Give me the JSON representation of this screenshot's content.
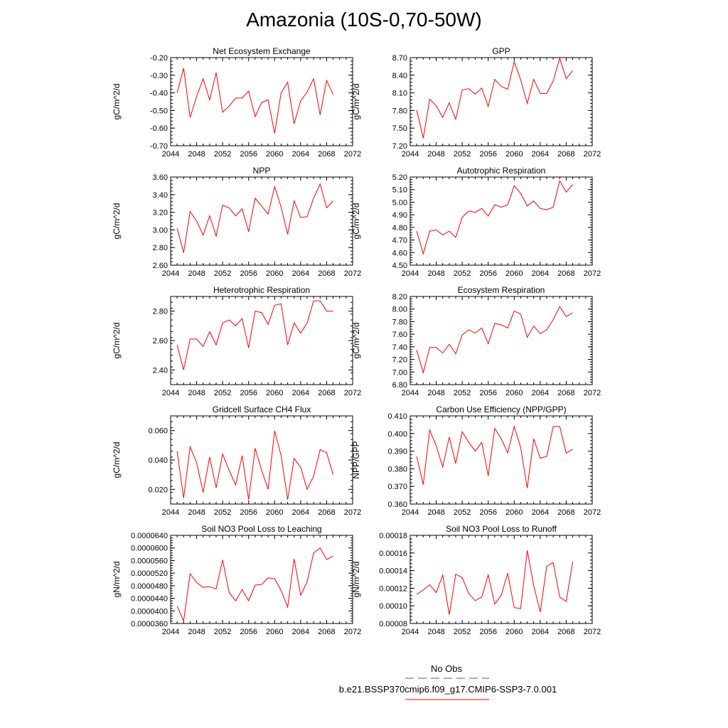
{
  "title": "Amazonia (10S-0,70-50W)",
  "legend": {
    "obs_label": "No Obs",
    "obs_color": "#4b4bff",
    "case_label": "b.e21.BSSP370cmip6.f09_g17.CMIP6-SSP3-7.0.001",
    "case_color": "#ff0000"
  },
  "chart_data": [
    {
      "type": "line",
      "title": "Net Ecosystem Exchange",
      "ylabel": "gC/m^2/d",
      "xlim": [
        2044,
        2072
      ],
      "xticks": [
        2044,
        2048,
        2052,
        2056,
        2060,
        2064,
        2068,
        2072
      ],
      "ylim": [
        -0.7,
        -0.2
      ],
      "yticks": [
        "-0.70",
        "-0.60",
        "-0.50",
        "-0.40",
        "-0.30",
        "-0.20"
      ],
      "x": [
        2045,
        2046,
        2047,
        2048,
        2049,
        2050,
        2051,
        2052,
        2053,
        2054,
        2055,
        2056,
        2057,
        2058,
        2059,
        2060,
        2061,
        2062,
        2063,
        2064,
        2065,
        2066,
        2067,
        2068,
        2069
      ],
      "y": [
        -0.4,
        -0.26,
        -0.54,
        -0.42,
        -0.32,
        -0.44,
        -0.285,
        -0.51,
        -0.475,
        -0.43,
        -0.43,
        -0.39,
        -0.535,
        -0.455,
        -0.44,
        -0.63,
        -0.4,
        -0.34,
        -0.575,
        -0.445,
        -0.395,
        -0.32,
        -0.525,
        -0.33,
        -0.41
      ]
    },
    {
      "type": "line",
      "title": "GPP",
      "ylabel": "gC/m^2/d",
      "xlim": [
        2044,
        2072
      ],
      "xticks": [
        2044,
        2048,
        2052,
        2056,
        2060,
        2064,
        2068,
        2072
      ],
      "ylim": [
        7.2,
        8.7
      ],
      "yticks": [
        "7.20",
        "7.50",
        "7.80",
        "8.10",
        "8.40",
        "8.70"
      ],
      "x": [
        2045,
        2046,
        2047,
        2048,
        2049,
        2050,
        2051,
        2052,
        2053,
        2054,
        2055,
        2056,
        2057,
        2058,
        2059,
        2060,
        2061,
        2062,
        2063,
        2064,
        2065,
        2066,
        2067,
        2068,
        2069
      ],
      "y": [
        7.81,
        7.33,
        7.99,
        7.88,
        7.68,
        7.93,
        7.65,
        8.15,
        8.17,
        8.08,
        8.18,
        7.87,
        8.33,
        8.21,
        8.16,
        8.63,
        8.32,
        7.92,
        8.33,
        8.09,
        8.09,
        8.3,
        8.69,
        8.34,
        8.48
      ]
    },
    {
      "type": "line",
      "title": "NPP",
      "ylabel": "gC/m^2/d",
      "xlim": [
        2044,
        2072
      ],
      "xticks": [
        2044,
        2048,
        2052,
        2056,
        2060,
        2064,
        2068,
        2072
      ],
      "ylim": [
        2.6,
        3.6
      ],
      "yticks": [
        "2.60",
        "2.80",
        "3.00",
        "3.20",
        "3.40",
        "3.60"
      ],
      "x": [
        2045,
        2046,
        2047,
        2048,
        2049,
        2050,
        2051,
        2052,
        2053,
        2054,
        2055,
        2056,
        2057,
        2058,
        2059,
        2060,
        2061,
        2062,
        2063,
        2064,
        2065,
        2066,
        2067,
        2068,
        2069
      ],
      "y": [
        3.02,
        2.74,
        3.21,
        3.1,
        2.94,
        3.16,
        2.93,
        3.28,
        3.25,
        3.16,
        3.24,
        2.98,
        3.36,
        3.27,
        3.18,
        3.49,
        3.26,
        2.95,
        3.33,
        3.14,
        3.15,
        3.36,
        3.52,
        3.25,
        3.33
      ]
    },
    {
      "type": "line",
      "title": "Autotrophic Respiration",
      "ylabel": "gC/m^2/d",
      "xlim": [
        2044,
        2072
      ],
      "xticks": [
        2044,
        2048,
        2052,
        2056,
        2060,
        2064,
        2068,
        2072
      ],
      "ylim": [
        4.5,
        5.2
      ],
      "yticks": [
        "4.50",
        "4.60",
        "4.70",
        "4.80",
        "4.90",
        "5.00",
        "5.10",
        "5.20"
      ],
      "x": [
        2045,
        2046,
        2047,
        2048,
        2049,
        2050,
        2051,
        2052,
        2053,
        2054,
        2055,
        2056,
        2057,
        2058,
        2059,
        2060,
        2061,
        2062,
        2063,
        2064,
        2065,
        2066,
        2067,
        2068,
        2069
      ],
      "y": [
        4.77,
        4.59,
        4.77,
        4.78,
        4.74,
        4.77,
        4.72,
        4.88,
        4.93,
        4.92,
        4.95,
        4.89,
        4.98,
        4.96,
        4.98,
        5.13,
        5.07,
        4.97,
        5.01,
        4.95,
        4.94,
        4.96,
        5.17,
        5.08,
        5.14
      ]
    },
    {
      "type": "line",
      "title": "Heterotrophic Respiration",
      "ylabel": "gC/m^2/d",
      "xlim": [
        2044,
        2072
      ],
      "xticks": [
        2044,
        2048,
        2052,
        2056,
        2060,
        2064,
        2068,
        2072
      ],
      "ylim": [
        2.3,
        2.9
      ],
      "yticks": [
        "2.40",
        "2.60",
        "2.80"
      ],
      "x": [
        2045,
        2046,
        2047,
        2048,
        2049,
        2050,
        2051,
        2052,
        2053,
        2054,
        2055,
        2056,
        2057,
        2058,
        2059,
        2060,
        2061,
        2062,
        2063,
        2064,
        2065,
        2066,
        2067,
        2068,
        2069
      ],
      "y": [
        2.57,
        2.4,
        2.61,
        2.61,
        2.56,
        2.66,
        2.57,
        2.72,
        2.74,
        2.7,
        2.75,
        2.55,
        2.8,
        2.79,
        2.71,
        2.84,
        2.85,
        2.57,
        2.72,
        2.65,
        2.72,
        2.87,
        2.87,
        2.8,
        2.8
      ]
    },
    {
      "type": "line",
      "title": "Ecosystem Respiration",
      "ylabel": "gC/m^2/d",
      "xlim": [
        2044,
        2072
      ],
      "xticks": [
        2044,
        2048,
        2052,
        2056,
        2060,
        2064,
        2068,
        2072
      ],
      "ylim": [
        6.8,
        8.2
      ],
      "yticks": [
        "6.80",
        "7.00",
        "7.20",
        "7.40",
        "7.60",
        "7.80",
        "8.00",
        "8.20"
      ],
      "x": [
        2045,
        2046,
        2047,
        2048,
        2049,
        2050,
        2051,
        2052,
        2053,
        2054,
        2055,
        2056,
        2057,
        2058,
        2059,
        2060,
        2061,
        2062,
        2063,
        2064,
        2065,
        2066,
        2067,
        2068,
        2069
      ],
      "y": [
        7.35,
        6.99,
        7.39,
        7.39,
        7.3,
        7.44,
        7.29,
        7.59,
        7.67,
        7.62,
        7.7,
        7.45,
        7.77,
        7.75,
        7.7,
        7.97,
        7.92,
        7.55,
        7.73,
        7.61,
        7.67,
        7.83,
        8.04,
        7.88,
        7.94
      ]
    },
    {
      "type": "line",
      "title": "Gridcell Surface CH4 Flux",
      "ylabel": "gC/m^2/d",
      "xlim": [
        2044,
        2072
      ],
      "xticks": [
        2044,
        2048,
        2052,
        2056,
        2060,
        2064,
        2068,
        2072
      ],
      "ylim": [
        0.01,
        0.07
      ],
      "yticks": [
        "0.020",
        "0.040",
        "0.060"
      ],
      "x": [
        2045,
        2046,
        2047,
        2048,
        2049,
        2050,
        2051,
        2052,
        2053,
        2054,
        2055,
        2056,
        2057,
        2058,
        2059,
        2060,
        2061,
        2062,
        2063,
        2064,
        2065,
        2066,
        2067,
        2068,
        2069
      ],
      "y": [
        0.046,
        0.014,
        0.049,
        0.038,
        0.018,
        0.042,
        0.021,
        0.044,
        0.033,
        0.023,
        0.043,
        0.013,
        0.048,
        0.033,
        0.02,
        0.06,
        0.043,
        0.013,
        0.041,
        0.035,
        0.02,
        0.029,
        0.047,
        0.045,
        0.03
      ]
    },
    {
      "type": "line",
      "title": "Carbon Use Efficiency (NPP/GPP)",
      "ylabel": "NPP/GPP",
      "xlim": [
        2044,
        2072
      ],
      "xticks": [
        2044,
        2048,
        2052,
        2056,
        2060,
        2064,
        2068,
        2072
      ],
      "ylim": [
        0.36,
        0.41
      ],
      "yticks": [
        "0.360",
        "0.370",
        "0.380",
        "0.390",
        "0.400",
        "0.410"
      ],
      "x": [
        2045,
        2046,
        2047,
        2048,
        2049,
        2050,
        2051,
        2052,
        2053,
        2054,
        2055,
        2056,
        2057,
        2058,
        2059,
        2060,
        2061,
        2062,
        2063,
        2064,
        2065,
        2066,
        2067,
        2068,
        2069
      ],
      "y": [
        0.387,
        0.371,
        0.402,
        0.393,
        0.381,
        0.398,
        0.383,
        0.401,
        0.395,
        0.39,
        0.395,
        0.376,
        0.403,
        0.397,
        0.389,
        0.404,
        0.392,
        0.369,
        0.397,
        0.386,
        0.387,
        0.404,
        0.404,
        0.389,
        0.391
      ]
    },
    {
      "type": "line",
      "title": "Soil NO3 Pool Loss to Leaching",
      "ylabel": "gN/m^2/d",
      "xlim": [
        2044,
        2072
      ],
      "xticks": [
        2044,
        2048,
        2052,
        2056,
        2060,
        2064,
        2068,
        2072
      ],
      "ylim": [
        3.6e-05,
        6.4e-05
      ],
      "yticks": [
        "0.0000360",
        "0.0000400",
        "0.0000440",
        "0.0000480",
        "0.0000520",
        "0.0000560",
        "0.0000600",
        "0.0000640"
      ],
      "x": [
        2045,
        2046,
        2047,
        2048,
        2049,
        2050,
        2051,
        2052,
        2053,
        2054,
        2055,
        2056,
        2057,
        2058,
        2059,
        2060,
        2061,
        2062,
        2063,
        2064,
        2065,
        2066,
        2067,
        2068,
        2069
      ],
      "y": [
        4.15e-05,
        3.68e-05,
        5.18e-05,
        4.9e-05,
        4.75e-05,
        4.77e-05,
        4.7e-05,
        5.62e-05,
        4.58e-05,
        4.32e-05,
        4.68e-05,
        4.32e-05,
        4.82e-05,
        4.84e-05,
        5.05e-05,
        5.02e-05,
        4.65e-05,
        4.12e-05,
        5.65e-05,
        4.5e-05,
        4.92e-05,
        5.84e-05,
        6e-05,
        5.63e-05,
        5.74e-05
      ]
    },
    {
      "type": "line",
      "title": "Soil NO3 Pool Loss to Runoff",
      "ylabel": "gN/m^2/d",
      "xlim": [
        2044,
        2072
      ],
      "xticks": [
        2044,
        2048,
        2052,
        2056,
        2060,
        2064,
        2068,
        2072
      ],
      "ylim": [
        8e-05,
        0.00018
      ],
      "yticks": [
        "0.00008",
        "0.00010",
        "0.00012",
        "0.00014",
        "0.00016",
        "0.00018"
      ],
      "x": [
        2045,
        2046,
        2047,
        2048,
        2049,
        2050,
        2051,
        2052,
        2053,
        2054,
        2055,
        2056,
        2057,
        2058,
        2059,
        2060,
        2061,
        2062,
        2063,
        2064,
        2065,
        2066,
        2067,
        2068,
        2069
      ],
      "y": [
        0.000113,
        0.000118,
        0.000124,
        0.000115,
        0.000135,
        9e-05,
        0.000136,
        0.000132,
        0.000114,
        0.000106,
        0.00011,
        0.000135,
        0.000102,
        0.000112,
        0.000137,
        9.8e-05,
        9.7e-05,
        0.000163,
        0.000123,
        9.3e-05,
        0.000145,
        0.000149,
        0.00011,
        0.000105,
        0.00015
      ]
    }
  ]
}
